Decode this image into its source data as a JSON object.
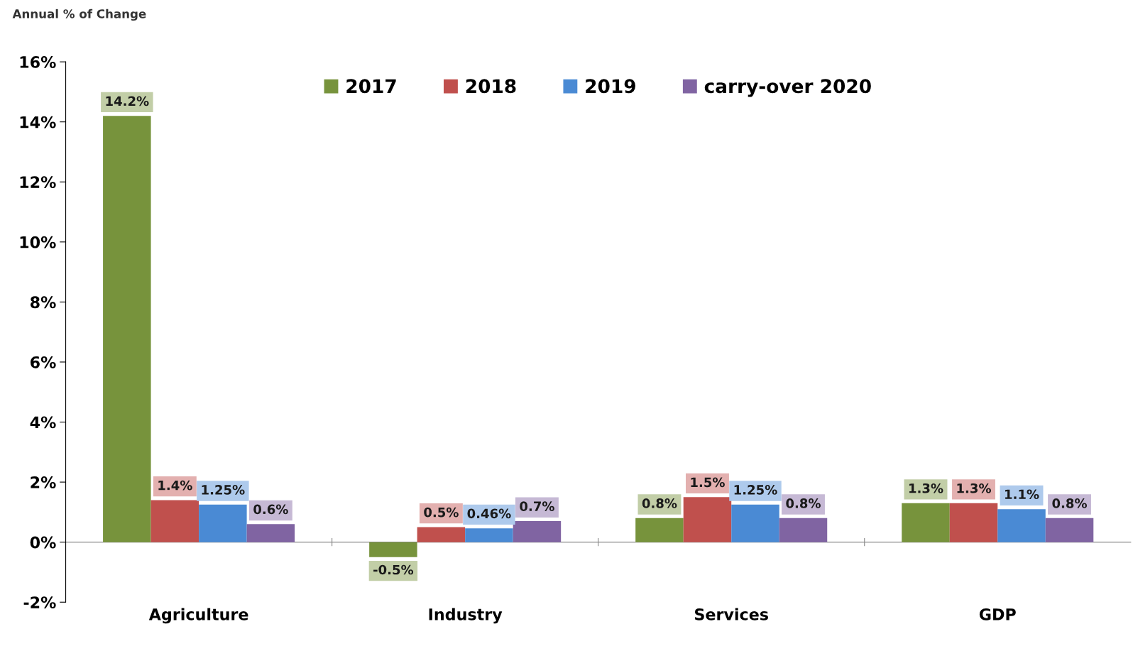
{
  "chart_data": {
    "type": "bar",
    "ylabel": "Annual % of Change",
    "categories": [
      "Agriculture",
      "Industry",
      "Services",
      "GDP"
    ],
    "series": [
      {
        "name": "2017",
        "color": "#77933c",
        "values": [
          14.2,
          -0.5,
          0.8,
          1.3
        ],
        "value_labels": [
          "14.2%",
          "-0.5%",
          "0.8%",
          "1.3%"
        ]
      },
      {
        "name": "2018",
        "color": "#c0504d",
        "values": [
          1.4,
          0.5,
          1.5,
          1.3
        ],
        "value_labels": [
          "1.4%",
          "0.5%",
          "1.5%",
          "1.3%"
        ]
      },
      {
        "name": "2019",
        "color": "#4a8ad4",
        "values": [
          1.25,
          0.46,
          1.25,
          1.1
        ],
        "value_labels": [
          "1.25%",
          "0.46%",
          "1.25%",
          "1.1%"
        ]
      },
      {
        "name": "carry-over 2020",
        "color": "#8064a2",
        "values": [
          0.6,
          0.7,
          0.8,
          0.8
        ],
        "value_labels": [
          "0.6%",
          "0.7%",
          "0.8%",
          "0.8%"
        ]
      }
    ],
    "ylim": [
      -2,
      16
    ],
    "yticks": [
      {
        "value": -2,
        "label": "-2%"
      },
      {
        "value": 0,
        "label": "0%"
      },
      {
        "value": 2,
        "label": "2%"
      },
      {
        "value": 4,
        "label": "4%"
      },
      {
        "value": 6,
        "label": "6%"
      },
      {
        "value": 8,
        "label": "8%"
      },
      {
        "value": 10,
        "label": "10%"
      },
      {
        "value": 12,
        "label": "12%"
      },
      {
        "value": 14,
        "label": "14%"
      },
      {
        "value": 16,
        "label": "16%"
      }
    ],
    "legend": "top"
  }
}
